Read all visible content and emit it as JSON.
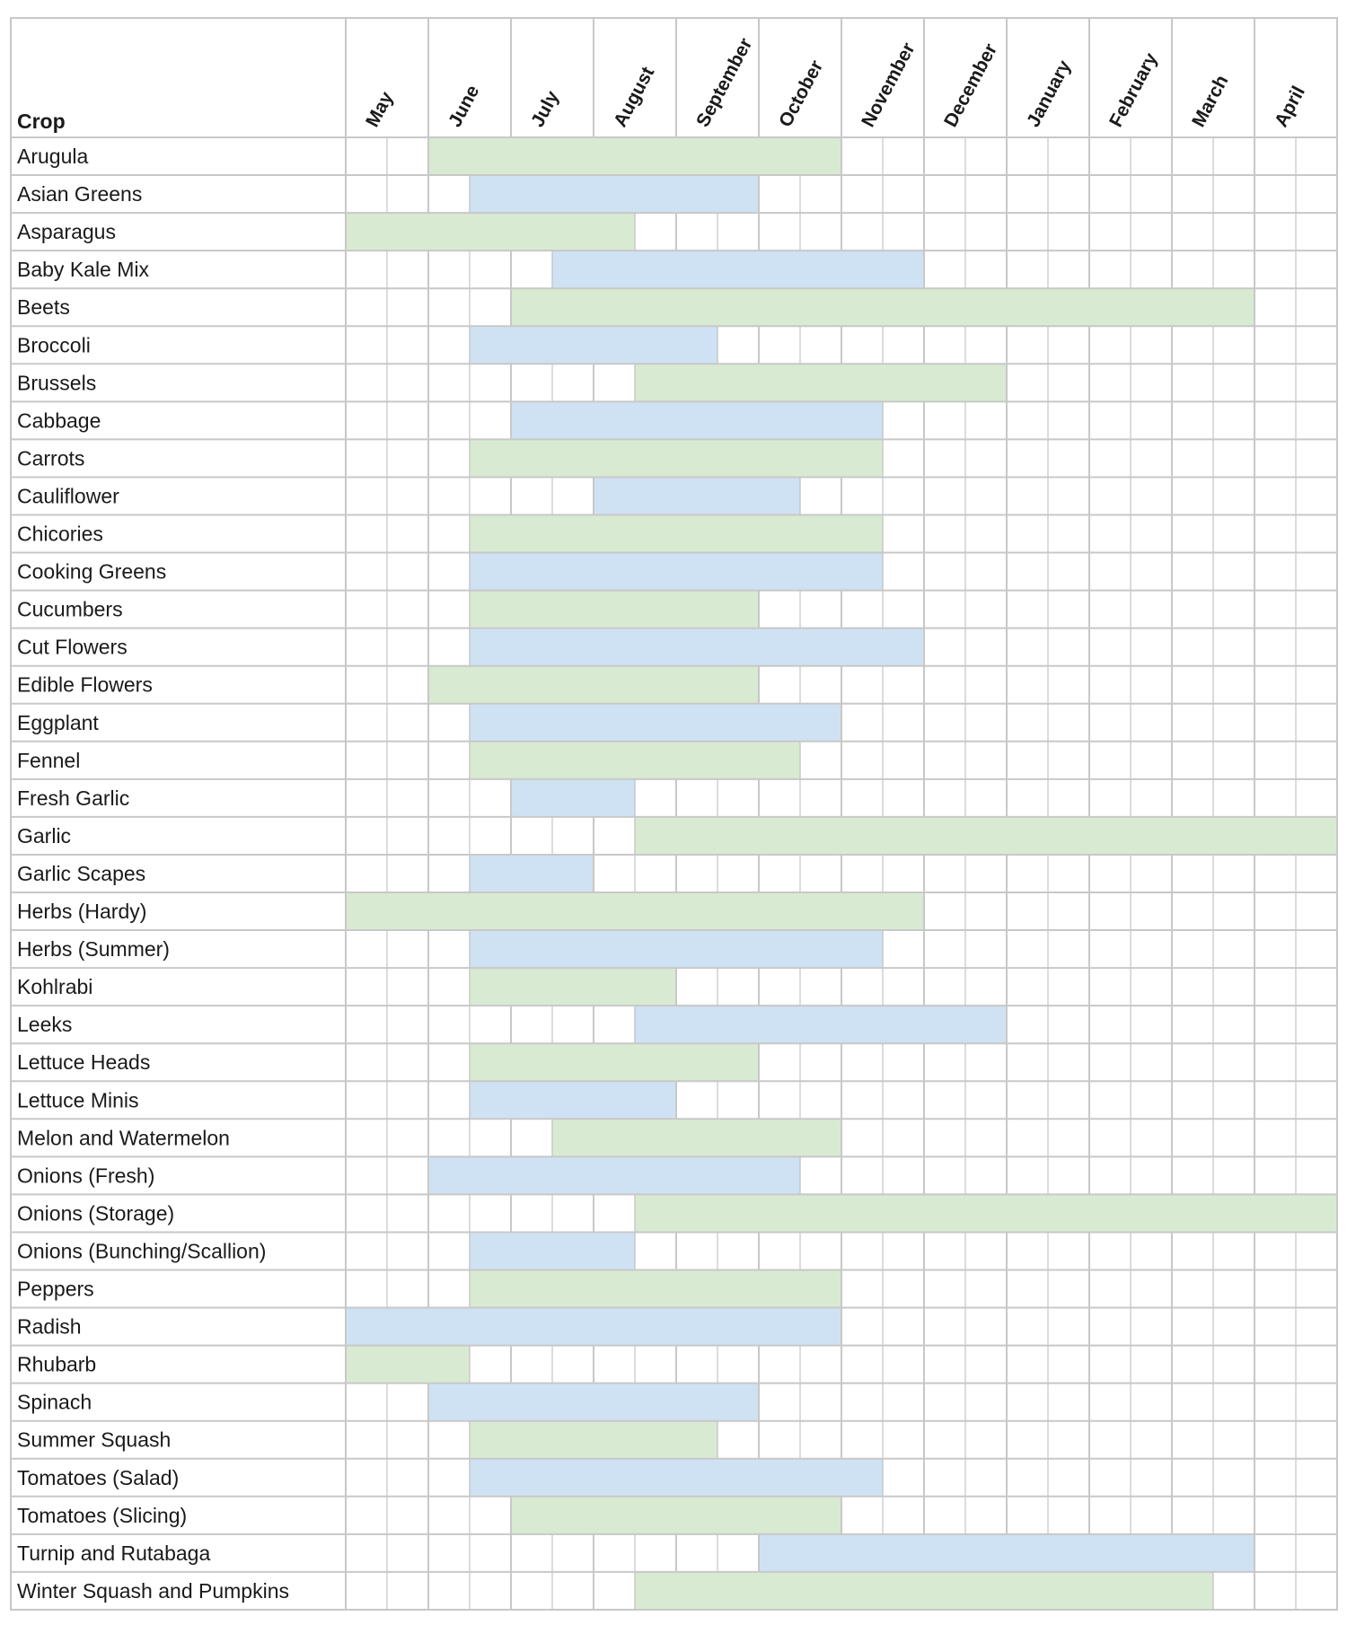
{
  "chart_data": {
    "type": "gantt",
    "crop_header": "Crop",
    "months": [
      "May",
      "June",
      "July",
      "August",
      "September",
      "October",
      "November",
      "December",
      "January",
      "February",
      "March",
      "April"
    ],
    "colors": {
      "green": "#d9ead3",
      "green_border": "#a9c79a",
      "blue": "#cfe2f3",
      "blue_border": "#9db6cc",
      "grid": "#c8c8c8"
    },
    "crops": [
      {
        "name": "Arugula",
        "start": 2,
        "end": 12,
        "color": "green"
      },
      {
        "name": "Asian Greens",
        "start": 3,
        "end": 10,
        "color": "blue"
      },
      {
        "name": "Asparagus",
        "start": 0,
        "end": 7,
        "color": "green"
      },
      {
        "name": "Baby Kale Mix",
        "start": 5,
        "end": 14,
        "color": "blue"
      },
      {
        "name": "Beets",
        "start": 4,
        "end": 22,
        "color": "green"
      },
      {
        "name": "Broccoli",
        "start": 3,
        "end": 9,
        "color": "blue"
      },
      {
        "name": "Brussels",
        "start": 7,
        "end": 16,
        "color": "green"
      },
      {
        "name": "Cabbage",
        "start": 4,
        "end": 13,
        "color": "blue"
      },
      {
        "name": "Carrots",
        "start": 3,
        "end": 13,
        "color": "green"
      },
      {
        "name": "Cauliflower",
        "start": 6,
        "end": 11,
        "color": "blue"
      },
      {
        "name": "Chicories",
        "start": 3,
        "end": 13,
        "color": "green"
      },
      {
        "name": "Cooking Greens",
        "start": 3,
        "end": 13,
        "color": "blue"
      },
      {
        "name": "Cucumbers",
        "start": 3,
        "end": 10,
        "color": "green"
      },
      {
        "name": "Cut Flowers",
        "start": 3,
        "end": 14,
        "color": "blue"
      },
      {
        "name": "Edible Flowers",
        "start": 2,
        "end": 10,
        "color": "green"
      },
      {
        "name": "Eggplant",
        "start": 3,
        "end": 12,
        "color": "blue"
      },
      {
        "name": "Fennel",
        "start": 3,
        "end": 11,
        "color": "green"
      },
      {
        "name": "Fresh Garlic",
        "start": 4,
        "end": 7,
        "color": "blue"
      },
      {
        "name": "Garlic",
        "start": 7,
        "end": 24,
        "color": "green"
      },
      {
        "name": "Garlic Scapes",
        "start": 3,
        "end": 6,
        "color": "blue"
      },
      {
        "name": "Herbs (Hardy)",
        "start": 0,
        "end": 14,
        "color": "green"
      },
      {
        "name": "Herbs (Summer)",
        "start": 3,
        "end": 13,
        "color": "blue"
      },
      {
        "name": "Kohlrabi",
        "start": 3,
        "end": 8,
        "color": "green"
      },
      {
        "name": "Leeks",
        "start": 7,
        "end": 16,
        "color": "blue"
      },
      {
        "name": "Lettuce Heads",
        "start": 3,
        "end": 10,
        "color": "green"
      },
      {
        "name": "Lettuce Minis",
        "start": 3,
        "end": 8,
        "color": "blue"
      },
      {
        "name": "Melon and Watermelon",
        "start": 5,
        "end": 12,
        "color": "green"
      },
      {
        "name": "Onions (Fresh)",
        "start": 2,
        "end": 11,
        "color": "blue"
      },
      {
        "name": "Onions (Storage)",
        "start": 7,
        "end": 24,
        "color": "green"
      },
      {
        "name": "Onions (Bunching/Scallion)",
        "start": 3,
        "end": 7,
        "color": "blue"
      },
      {
        "name": "Peppers",
        "start": 3,
        "end": 12,
        "color": "green"
      },
      {
        "name": "Radish",
        "start": 0,
        "end": 12,
        "color": "blue"
      },
      {
        "name": "Rhubarb",
        "start": 0,
        "end": 3,
        "color": "green"
      },
      {
        "name": "Spinach",
        "start": 2,
        "end": 10,
        "color": "blue"
      },
      {
        "name": "Summer Squash",
        "start": 3,
        "end": 9,
        "color": "green"
      },
      {
        "name": "Tomatoes (Salad)",
        "start": 3,
        "end": 13,
        "color": "blue"
      },
      {
        "name": "Tomatoes (Slicing)",
        "start": 4,
        "end": 12,
        "color": "green"
      },
      {
        "name": "Turnip and Rutabaga",
        "start": 10,
        "end": 22,
        "color": "blue"
      },
      {
        "name": "Winter Squash and Pumpkins",
        "start": 7,
        "end": 21,
        "color": "green"
      }
    ]
  }
}
